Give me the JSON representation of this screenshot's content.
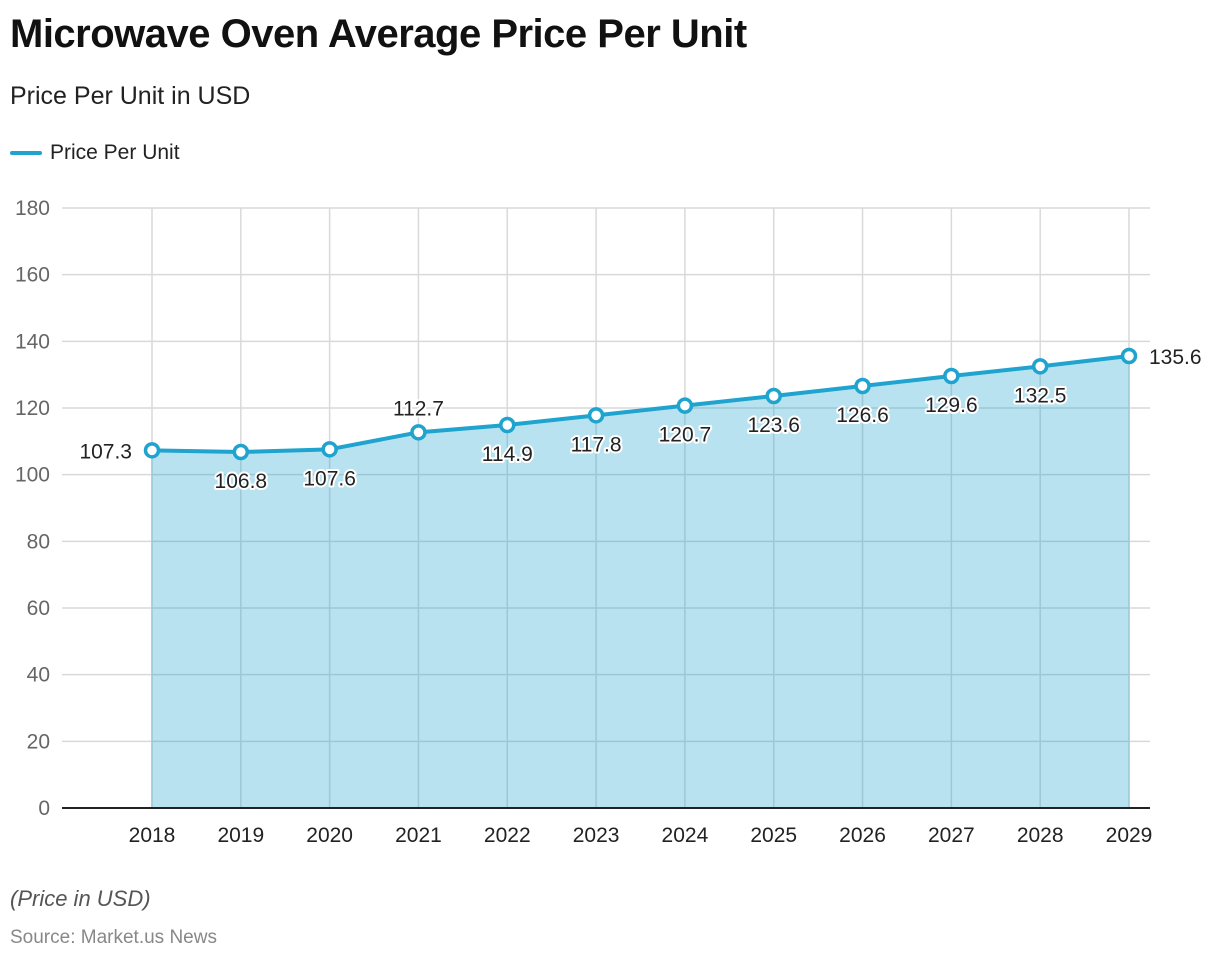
{
  "header": {
    "title": "Microwave Oven Average Price Per Unit",
    "subtitle": "Price Per Unit in USD"
  },
  "legend": {
    "label": "Price Per Unit",
    "color": "#1fa3cf"
  },
  "footer": {
    "note": "(Price in USD)",
    "source": "Source: Market.us News"
  },
  "colors": {
    "line": "#1fa3cf",
    "area": "#b9e2f0",
    "grid": "#d9d9d9",
    "axis": "#222222"
  },
  "chart_data": {
    "type": "area",
    "title": "Microwave Oven Average Price Per Unit",
    "subtitle": "Price Per Unit in USD",
    "xlabel": "",
    "ylabel": "",
    "categories": [
      "2018",
      "2019",
      "2020",
      "2021",
      "2022",
      "2023",
      "2024",
      "2025",
      "2026",
      "2027",
      "2028",
      "2029"
    ],
    "series": [
      {
        "name": "Price Per Unit",
        "values": [
          107.3,
          106.8,
          107.6,
          112.7,
          114.9,
          117.8,
          120.7,
          123.6,
          126.6,
          129.6,
          132.5,
          135.6
        ],
        "label_positions": [
          "left",
          "below",
          "below",
          "above",
          "below",
          "below",
          "below",
          "below",
          "below",
          "below",
          "below",
          "right"
        ]
      }
    ],
    "ylim": [
      0,
      180
    ],
    "yticks": [
      0,
      20,
      40,
      60,
      80,
      100,
      120,
      140,
      160,
      180
    ],
    "grid": true,
    "legend_position": "top-left"
  }
}
